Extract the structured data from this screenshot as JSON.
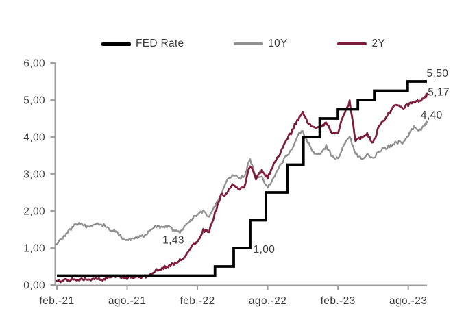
{
  "legend": {
    "items": [
      {
        "name": "fed-rate",
        "label": "FED Rate",
        "color": "#000000"
      },
      {
        "name": "10y",
        "label": "10Y",
        "color": "#919191"
      },
      {
        "name": "2y",
        "label": "2Y",
        "color": "#7D1E3D"
      }
    ]
  },
  "chart_data": {
    "type": "line",
    "title": "",
    "x_unit": "months since Feb-2021",
    "x_domain": [
      0,
      31.6
    ],
    "y_domain": [
      0,
      6
    ],
    "grid": false,
    "legend_position": "top",
    "axis_color": "#9E9E9E",
    "text_color": "#3C3C3C",
    "x_ticks": [
      {
        "t": 0,
        "label": "feb.-21"
      },
      {
        "t": 6,
        "label": "ago.-21"
      },
      {
        "t": 12,
        "label": "feb.-22"
      },
      {
        "t": 18,
        "label": "ago.-22"
      },
      {
        "t": 24,
        "label": "feb.-23"
      },
      {
        "t": 30,
        "label": "ago.-23"
      }
    ],
    "y_ticks": [
      {
        "v": 0,
        "label": "0,00"
      },
      {
        "v": 1,
        "label": "1,00"
      },
      {
        "v": 2,
        "label": "2,00"
      },
      {
        "v": 3,
        "label": "3,00"
      },
      {
        "v": 4,
        "label": "4,00"
      },
      {
        "v": 5,
        "label": "5,00"
      },
      {
        "v": 6,
        "label": "6,00"
      }
    ],
    "series": [
      {
        "name": "FED Rate",
        "color": "#000000",
        "width": 3.8,
        "type": "step",
        "points": [
          [
            0,
            0.25
          ],
          [
            13.5,
            0.5
          ],
          [
            15.1,
            1.0
          ],
          [
            16.5,
            1.75
          ],
          [
            17.85,
            2.5
          ],
          [
            19.7,
            3.25
          ],
          [
            21.05,
            4.0
          ],
          [
            22.45,
            4.5
          ],
          [
            24.0,
            4.75
          ],
          [
            25.7,
            5.0
          ],
          [
            27.1,
            5.25
          ],
          [
            29.95,
            5.5
          ],
          [
            31.6,
            5.5
          ]
        ]
      },
      {
        "name": "10Y",
        "color": "#919191",
        "width": 2.4,
        "type": "line",
        "points": [
          [
            0,
            1.1
          ],
          [
            0.5,
            1.28
          ],
          [
            1,
            1.45
          ],
          [
            1.5,
            1.62
          ],
          [
            2,
            1.68
          ],
          [
            2.5,
            1.58
          ],
          [
            3,
            1.63
          ],
          [
            3.5,
            1.64
          ],
          [
            4,
            1.62
          ],
          [
            4.5,
            1.5
          ],
          [
            5,
            1.47
          ],
          [
            5.5,
            1.3
          ],
          [
            6,
            1.19
          ],
          [
            6.5,
            1.26
          ],
          [
            7,
            1.31
          ],
          [
            7.5,
            1.33
          ],
          [
            8,
            1.49
          ],
          [
            8.5,
            1.58
          ],
          [
            9,
            1.57
          ],
          [
            9.5,
            1.6
          ],
          [
            10,
            1.44
          ],
          [
            10.5,
            1.43
          ],
          [
            11,
            1.63
          ],
          [
            11.5,
            1.78
          ],
          [
            12,
            1.93
          ],
          [
            12.5,
            1.98
          ],
          [
            13,
            1.86
          ],
          [
            13.5,
            2.15
          ],
          [
            14,
            2.39
          ],
          [
            14.5,
            2.83
          ],
          [
            15,
            2.99
          ],
          [
            15.5,
            2.88
          ],
          [
            16,
            2.94
          ],
          [
            16.5,
            3.4
          ],
          [
            17,
            2.9
          ],
          [
            17.5,
            2.93
          ],
          [
            18,
            2.63
          ],
          [
            18.5,
            2.89
          ],
          [
            19,
            3.19
          ],
          [
            19.5,
            3.45
          ],
          [
            20,
            3.62
          ],
          [
            20.5,
            4.02
          ],
          [
            21,
            4.15
          ],
          [
            21.5,
            3.8
          ],
          [
            22,
            3.55
          ],
          [
            22.5,
            3.5
          ],
          [
            23,
            3.75
          ],
          [
            23.5,
            3.48
          ],
          [
            24,
            3.42
          ],
          [
            24.5,
            3.81
          ],
          [
            25,
            4.0
          ],
          [
            25.5,
            3.57
          ],
          [
            26,
            3.42
          ],
          [
            26.5,
            3.53
          ],
          [
            27,
            3.4
          ],
          [
            27.5,
            3.62
          ],
          [
            28,
            3.7
          ],
          [
            28.5,
            3.77
          ],
          [
            29,
            3.86
          ],
          [
            29.5,
            3.85
          ],
          [
            30,
            4.05
          ],
          [
            30.5,
            4.26
          ],
          [
            31,
            4.18
          ],
          [
            31.5,
            4.35
          ],
          [
            31.6,
            4.4
          ]
        ]
      },
      {
        "name": "2Y",
        "color": "#7D1E3D",
        "width": 2.8,
        "type": "line",
        "points": [
          [
            0,
            0.11
          ],
          [
            0.5,
            0.11
          ],
          [
            1,
            0.14
          ],
          [
            1.5,
            0.15
          ],
          [
            2,
            0.16
          ],
          [
            2.5,
            0.16
          ],
          [
            3,
            0.16
          ],
          [
            3.5,
            0.15
          ],
          [
            4,
            0.14
          ],
          [
            4.5,
            0.23
          ],
          [
            5,
            0.25
          ],
          [
            5.5,
            0.22
          ],
          [
            6,
            0.18
          ],
          [
            6.5,
            0.22
          ],
          [
            7,
            0.21
          ],
          [
            7.5,
            0.22
          ],
          [
            8,
            0.28
          ],
          [
            8.5,
            0.4
          ],
          [
            9,
            0.45
          ],
          [
            9.5,
            0.52
          ],
          [
            10,
            0.56
          ],
          [
            10.5,
            0.66
          ],
          [
            11,
            0.78
          ],
          [
            11.5,
            1.02
          ],
          [
            12,
            1.18
          ],
          [
            12.5,
            1.47
          ],
          [
            13,
            1.44
          ],
          [
            13.5,
            1.94
          ],
          [
            14,
            2.42
          ],
          [
            14.5,
            2.46
          ],
          [
            15,
            2.72
          ],
          [
            15.5,
            2.58
          ],
          [
            16,
            2.66
          ],
          [
            16.5,
            3.24
          ],
          [
            17,
            2.88
          ],
          [
            17.5,
            3.1
          ],
          [
            18,
            2.9
          ],
          [
            18.5,
            3.26
          ],
          [
            19,
            3.5
          ],
          [
            19.5,
            3.87
          ],
          [
            20,
            4.11
          ],
          [
            20.5,
            4.44
          ],
          [
            21,
            4.66
          ],
          [
            21.5,
            4.36
          ],
          [
            22,
            4.28
          ],
          [
            22.5,
            4.24
          ],
          [
            23,
            4.4
          ],
          [
            23.5,
            4.12
          ],
          [
            24,
            4.1
          ],
          [
            24.5,
            4.64
          ],
          [
            25,
            4.95
          ],
          [
            25.5,
            3.92
          ],
          [
            26,
            3.98
          ],
          [
            26.5,
            4.1
          ],
          [
            27,
            3.82
          ],
          [
            27.5,
            4.3
          ],
          [
            28,
            4.46
          ],
          [
            28.5,
            4.72
          ],
          [
            29,
            4.87
          ],
          [
            29.5,
            4.78
          ],
          [
            30,
            4.87
          ],
          [
            30.5,
            4.96
          ],
          [
            31,
            4.98
          ],
          [
            31.5,
            5.1
          ],
          [
            31.6,
            5.17
          ]
        ]
      }
    ],
    "annotations": [
      {
        "text": "1,43",
        "t": 9.95,
        "v": 1.22
      },
      {
        "text": "1,00",
        "t": 17.7,
        "v": 0.97
      },
      {
        "text": "5,50",
        "t": 32.5,
        "v": 5.73
      },
      {
        "text": "5,17",
        "t": 32.6,
        "v": 5.22
      },
      {
        "text": "4,40",
        "t": 32.0,
        "v": 4.6
      }
    ]
  }
}
